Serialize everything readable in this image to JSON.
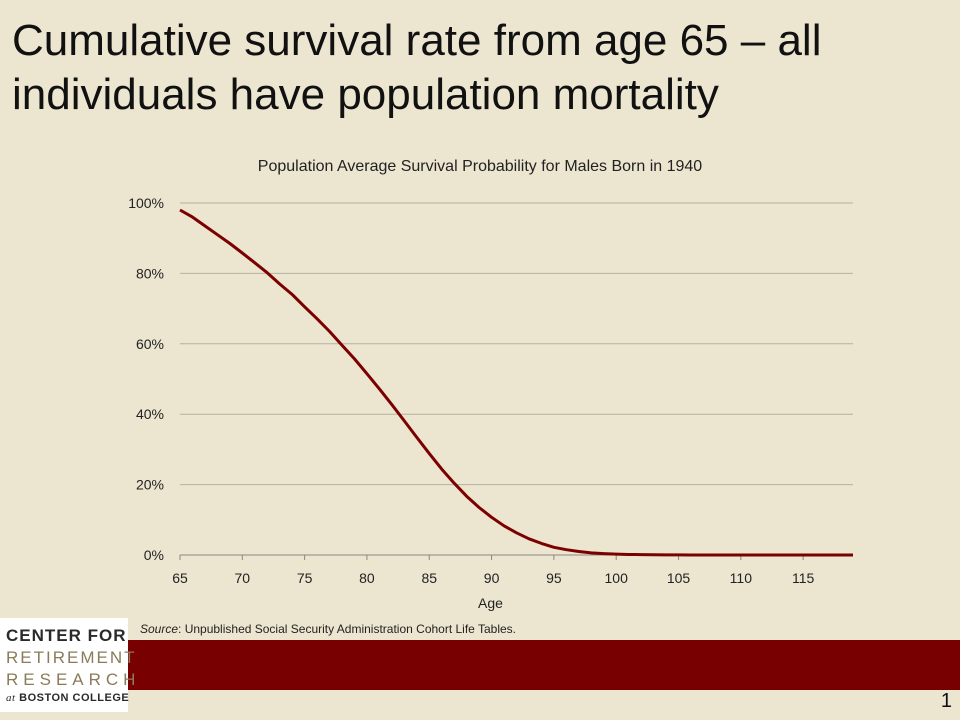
{
  "slide": {
    "title": "Cumulative survival rate from age 65 – all individuals have population mortality",
    "source_prefix": "Source",
    "source_text": ": Unpublished Social Security Administration Cohort Life Tables.",
    "page_number": "1"
  },
  "logo": {
    "line1": "CENTER FOR",
    "line2": "RETIREMENT",
    "line3": "RESEARCH",
    "line4_prefix": "at",
    "line4": "BOSTON COLLEGE"
  },
  "colors": {
    "background": "#ece5d0",
    "line": "#7b0000",
    "footer_bar": "#780000",
    "grid": "#b5b0a0"
  },
  "chart_data": {
    "type": "line",
    "title": "Population Average Survival Probability for Males Born in 1940",
    "xlabel": "Age",
    "ylabel": "",
    "xlim": [
      65,
      119
    ],
    "ylim": [
      0,
      100
    ],
    "x_ticks": [
      65,
      70,
      75,
      80,
      85,
      90,
      95,
      100,
      105,
      110,
      115
    ],
    "y_ticks": [
      0,
      20,
      40,
      60,
      80,
      100
    ],
    "y_tick_labels": [
      "0%",
      "20%",
      "40%",
      "60%",
      "80%",
      "100%"
    ],
    "grid": "horizontal",
    "legend": "none",
    "series": [
      {
        "x": [
          65,
          66,
          67,
          68,
          69,
          70,
          71,
          72,
          73,
          74,
          75,
          76,
          77,
          78,
          79,
          80,
          81,
          82,
          83,
          84,
          85,
          86,
          87,
          88,
          89,
          90,
          91,
          92,
          93,
          94,
          95,
          96,
          97,
          98,
          99,
          100,
          101,
          102,
          103,
          104,
          105,
          106,
          107,
          108,
          109,
          110,
          111,
          112,
          113,
          114,
          115,
          116,
          117,
          118,
          119
        ],
        "values": [
          98,
          96,
          93.5,
          91,
          88.5,
          85.8,
          83,
          80.2,
          77,
          74,
          70.5,
          67.1,
          63.5,
          59.6,
          55.7,
          51.5,
          47.2,
          42.7,
          38.1,
          33.4,
          28.8,
          24.4,
          20.4,
          16.7,
          13.5,
          10.7,
          8.3,
          6.3,
          4.6,
          3.3,
          2.2,
          1.5,
          1.0,
          0.6,
          0.4,
          0.25,
          0.15,
          0.1,
          0.05,
          0.03,
          0.02,
          0.01,
          0,
          0,
          0,
          0,
          0,
          0,
          0,
          0,
          0,
          0,
          0,
          0,
          0
        ]
      }
    ]
  }
}
